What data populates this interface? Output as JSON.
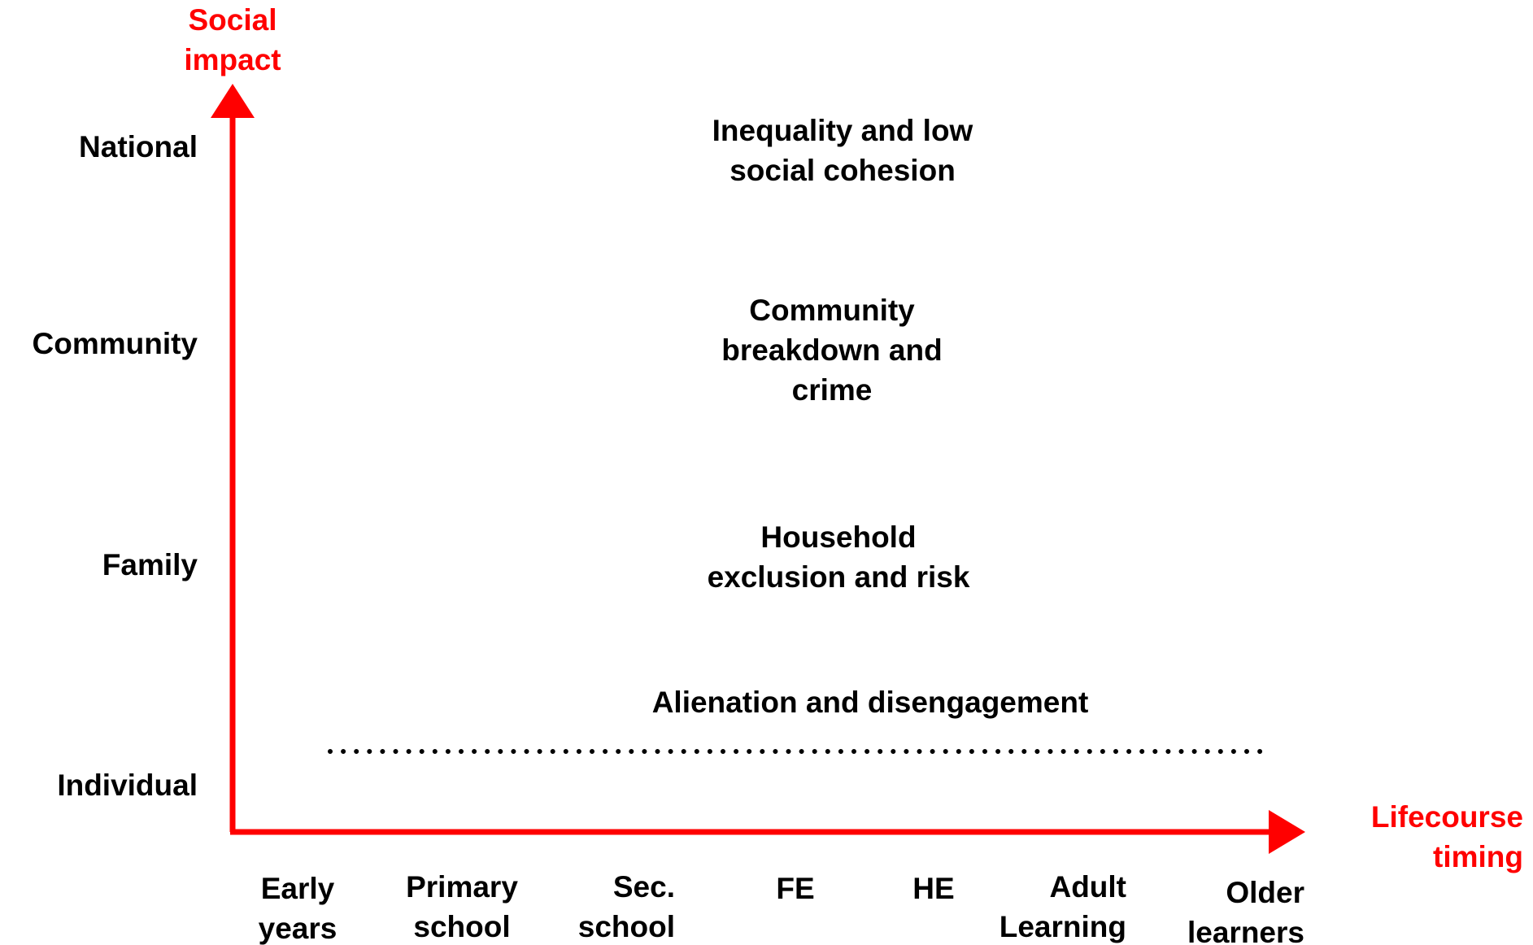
{
  "y_axis": {
    "label": [
      "Social",
      "impact"
    ],
    "levels": [
      "National",
      "Community",
      "Family",
      "Individual"
    ]
  },
  "x_axis": {
    "label": [
      "Lifecourse",
      "timing"
    ],
    "stages": [
      [
        "Early",
        "years"
      ],
      [
        "Primary",
        "school"
      ],
      [
        "Sec.",
        "school"
      ],
      [
        "FE"
      ],
      [
        "HE"
      ],
      [
        "Adult",
        "Learning"
      ],
      [
        "Older",
        "learners"
      ]
    ]
  },
  "impacts": [
    [
      "Inequality and low",
      "social cohesion"
    ],
    [
      "Community",
      "breakdown and",
      "crime"
    ],
    [
      "Household",
      "exclusion and risk"
    ],
    [
      "Alienation and disengagement"
    ]
  ]
}
